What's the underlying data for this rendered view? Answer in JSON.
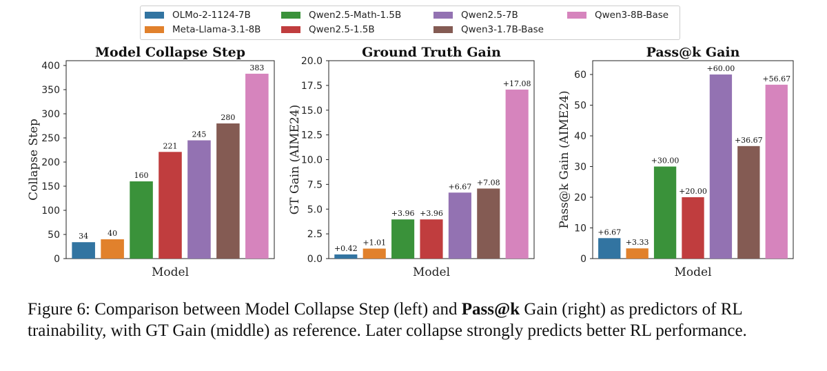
{
  "legend": [
    {
      "name": "OLMo-2-1124-7B",
      "color": "#3274a1"
    },
    {
      "name": "Meta-Llama-3.1-8B",
      "color": "#e1812c"
    },
    {
      "name": "Qwen2.5-Math-1.5B",
      "color": "#3a923a"
    },
    {
      "name": "Qwen2.5-1.5B",
      "color": "#c03d3e"
    },
    {
      "name": "Qwen2.5-7B",
      "color": "#9372b2"
    },
    {
      "name": "Qwen3-1.7B-Base",
      "color": "#845b53"
    },
    {
      "name": "Qwen3-8B-Base",
      "color": "#d684bd"
    }
  ],
  "chart_data": [
    {
      "type": "bar",
      "title": "Model Collapse Step",
      "xlabel": "Model",
      "ylabel": "Collapse Step",
      "categories": [
        "OLMo-2-1124-7B",
        "Meta-Llama-3.1-8B",
        "Qwen2.5-Math-1.5B",
        "Qwen2.5-1.5B",
        "Qwen2.5-7B",
        "Qwen3-1.7B-Base",
        "Qwen3-8B-Base"
      ],
      "values": [
        34,
        40,
        160,
        221,
        245,
        280,
        383
      ],
      "labels": [
        "34",
        "40",
        "160",
        "221",
        "245",
        "280",
        "383"
      ],
      "ylim": [
        0,
        410
      ],
      "yticks": [
        0,
        50,
        100,
        150,
        200,
        250,
        300,
        350,
        400
      ],
      "ytick_labels": [
        "0",
        "50",
        "100",
        "150",
        "200",
        "250",
        "300",
        "350",
        "400"
      ]
    },
    {
      "type": "bar",
      "title": "Ground Truth Gain",
      "xlabel": "Model",
      "ylabel": "GT Gain (AIME24)",
      "categories": [
        "OLMo-2-1124-7B",
        "Meta-Llama-3.1-8B",
        "Qwen2.5-Math-1.5B",
        "Qwen2.5-1.5B",
        "Qwen2.5-7B",
        "Qwen3-1.7B-Base",
        "Qwen3-8B-Base"
      ],
      "values": [
        0.42,
        1.01,
        3.96,
        3.96,
        6.67,
        7.08,
        17.08
      ],
      "labels": [
        "+0.42",
        "+1.01",
        "+3.96",
        "+3.96",
        "+6.67",
        "+7.08",
        "+17.08"
      ],
      "ylim": [
        0,
        20
      ],
      "yticks": [
        0,
        2.5,
        5,
        7.5,
        10,
        12.5,
        15,
        17.5,
        20
      ],
      "ytick_labels": [
        "0.0",
        "2.5",
        "5.0",
        "7.5",
        "10.0",
        "12.5",
        "15.0",
        "17.5",
        "20.0"
      ]
    },
    {
      "type": "bar",
      "title": "Pass@k Gain",
      "xlabel": "Model",
      "ylabel": "Pass@k Gain (AIME24)",
      "categories": [
        "OLMo-2-1124-7B",
        "Meta-Llama-3.1-8B",
        "Qwen2.5-Math-1.5B",
        "Qwen2.5-1.5B",
        "Qwen2.5-7B",
        "Qwen3-1.7B-Base",
        "Qwen3-8B-Base"
      ],
      "values": [
        6.67,
        3.33,
        30.0,
        20.0,
        60.0,
        36.67,
        56.67
      ],
      "labels": [
        "+6.67",
        "+3.33",
        "+30.00",
        "+20.00",
        "+60.00",
        "+36.67",
        "+56.67"
      ],
      "ylim": [
        0,
        64.5
      ],
      "yticks": [
        0,
        10,
        20,
        30,
        40,
        50,
        60
      ],
      "ytick_labels": [
        "0",
        "10",
        "20",
        "30",
        "40",
        "50",
        "60"
      ]
    }
  ],
  "caption": {
    "part1": "Figure 6: Comparison between Model Collapse Step (left) and ",
    "bold": "Pass@k",
    "part2": " Gain (right) as predictors of RL trainability, with GT Gain (middle) as reference. Later collapse strongly predicts better RL performance."
  }
}
